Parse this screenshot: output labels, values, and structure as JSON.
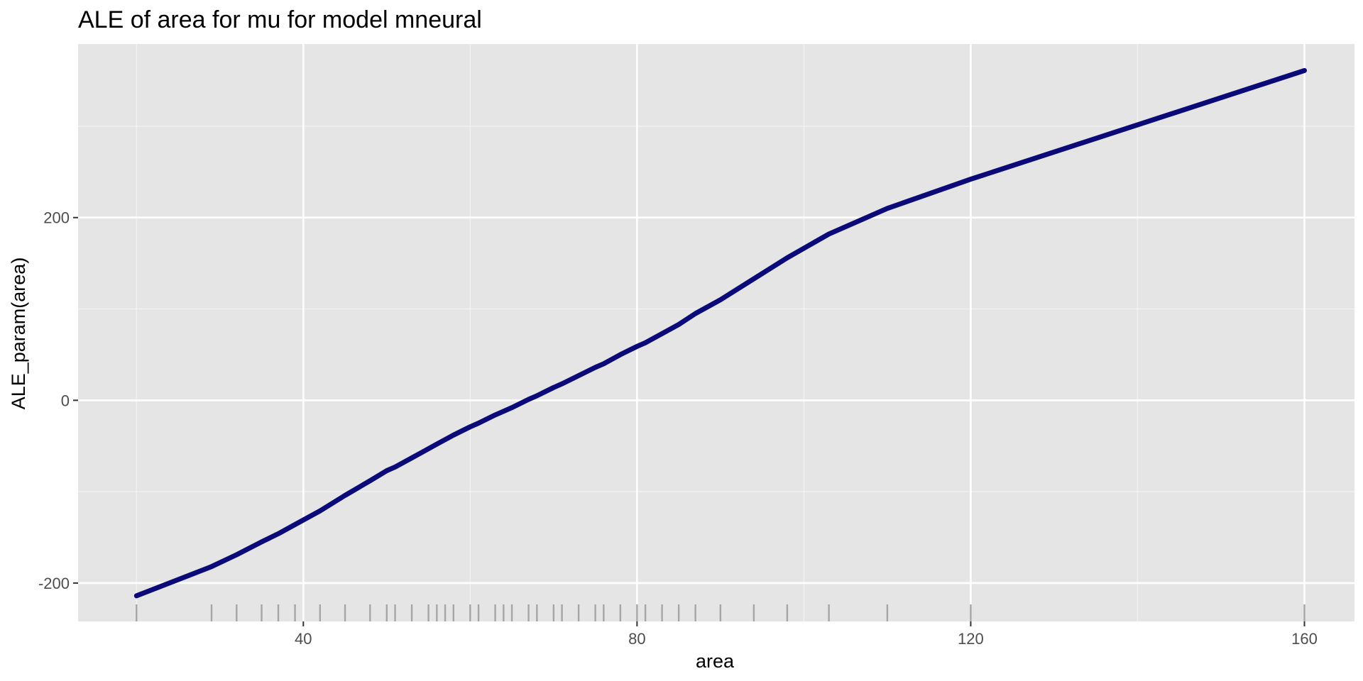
{
  "chart_data": {
    "type": "line",
    "title": "ALE of area for mu for model mneural",
    "xlabel": "area",
    "ylabel": "ALE_param(area)",
    "xlim": [
      13,
      166
    ],
    "ylim": [
      -242,
      390
    ],
    "x_ticks": [
      40,
      80,
      120,
      160
    ],
    "y_ticks": [
      -200,
      0,
      200
    ],
    "x_tick_labels": [
      "40",
      "80",
      "120",
      "160"
    ],
    "y_tick_labels": [
      "-200",
      "0",
      "200"
    ],
    "grid": true,
    "line_color": "#0a0a78",
    "panel_color": "#e5e5e5",
    "series": [
      {
        "x": [
          20,
          29,
          32,
          35,
          37,
          39,
          42,
          45,
          48,
          50,
          51,
          53,
          55,
          56,
          57,
          58,
          60,
          61,
          63,
          64,
          65,
          67,
          68,
          70,
          71,
          73,
          75,
          76,
          78,
          80,
          81,
          83,
          85,
          87,
          90,
          94,
          98,
          103,
          110,
          120,
          160
        ],
        "y": [
          -214,
          -182,
          -169,
          -155,
          -146,
          -136,
          -121,
          -104,
          -88,
          -77,
          -73,
          -63,
          -53,
          -48,
          -43,
          -38,
          -29,
          -25,
          -16,
          -12,
          -8,
          1,
          5,
          14,
          18,
          27,
          36,
          40,
          50,
          59,
          63,
          73,
          83,
          95,
          110,
          133,
          156,
          182,
          210,
          242,
          361
        ]
      }
    ],
    "rug_x": [
      20,
      29,
      32,
      35,
      37,
      39,
      42,
      45,
      48,
      50,
      51,
      53,
      55,
      56,
      57,
      58,
      60,
      61,
      63,
      64,
      65,
      67,
      68,
      70,
      71,
      73,
      75,
      76,
      78,
      80,
      81,
      83,
      85,
      87,
      90,
      94,
      98,
      103,
      110,
      120,
      160
    ]
  }
}
